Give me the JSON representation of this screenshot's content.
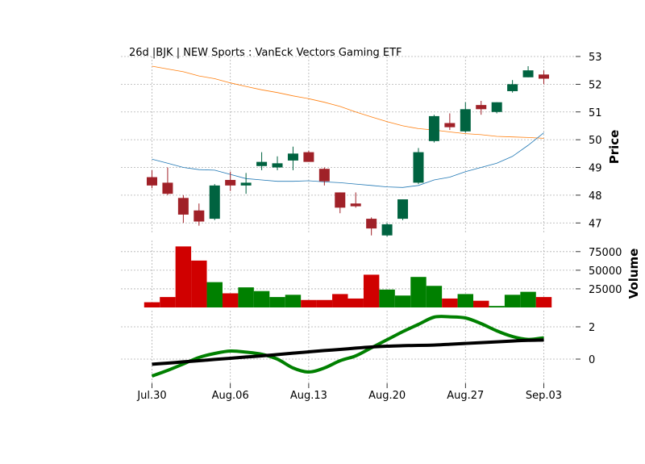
{
  "chart_data": {
    "type": "candlestick",
    "title": "26d |BJK | NEW Sports : VanEck Vectors Gaming ETF",
    "x_ticks": [
      "Jul.30",
      "Aug.06",
      "Aug.13",
      "Aug.20",
      "Aug.27",
      "Sep.03"
    ],
    "x_tick_index": [
      0,
      5,
      10,
      15,
      20,
      25
    ],
    "price_panel": {
      "ylabel": "Price",
      "ylim": [
        46.6,
        53.0
      ],
      "y_ticks": [
        47,
        48,
        49,
        50,
        51,
        52,
        53
      ],
      "candles": [
        {
          "o": 48.65,
          "h": 48.9,
          "l": 48.25,
          "c": 48.35
        },
        {
          "o": 48.45,
          "h": 49.0,
          "l": 48.0,
          "c": 48.05
        },
        {
          "o": 47.9,
          "h": 48.0,
          "l": 47.0,
          "c": 47.3
        },
        {
          "o": 47.45,
          "h": 47.7,
          "l": 46.9,
          "c": 47.05
        },
        {
          "o": 47.15,
          "h": 48.4,
          "l": 47.1,
          "c": 48.35
        },
        {
          "o": 48.55,
          "h": 48.85,
          "l": 48.15,
          "c": 48.35
        },
        {
          "o": 48.35,
          "h": 48.8,
          "l": 48.05,
          "c": 48.45
        },
        {
          "o": 49.05,
          "h": 49.55,
          "l": 48.9,
          "c": 49.2
        },
        {
          "o": 49.0,
          "h": 49.4,
          "l": 48.9,
          "c": 49.15
        },
        {
          "o": 49.25,
          "h": 49.75,
          "l": 48.9,
          "c": 49.5
        },
        {
          "o": 49.55,
          "h": 49.6,
          "l": 49.2,
          "c": 49.2
        },
        {
          "o": 48.95,
          "h": 49.0,
          "l": 48.35,
          "c": 48.5
        },
        {
          "o": 48.1,
          "h": 48.1,
          "l": 47.35,
          "c": 47.55
        },
        {
          "o": 47.7,
          "h": 48.1,
          "l": 47.55,
          "c": 47.6
        },
        {
          "o": 47.15,
          "h": 47.2,
          "l": 46.55,
          "c": 46.8
        },
        {
          "o": 46.55,
          "h": 47.0,
          "l": 46.5,
          "c": 46.95
        },
        {
          "o": 47.15,
          "h": 47.85,
          "l": 47.1,
          "c": 47.85
        },
        {
          "o": 48.45,
          "h": 49.7,
          "l": 48.4,
          "c": 49.55
        },
        {
          "o": 49.95,
          "h": 50.9,
          "l": 49.9,
          "c": 50.85
        },
        {
          "o": 50.6,
          "h": 50.95,
          "l": 50.35,
          "c": 50.45
        },
        {
          "o": 50.3,
          "h": 51.35,
          "l": 50.25,
          "c": 51.1
        },
        {
          "o": 51.25,
          "h": 51.4,
          "l": 50.9,
          "c": 51.1
        },
        {
          "o": 51.0,
          "h": 51.35,
          "l": 50.95,
          "c": 51.35
        },
        {
          "o": 51.75,
          "h": 52.15,
          "l": 51.7,
          "c": 52.0
        },
        {
          "o": 52.25,
          "h": 52.65,
          "l": 52.25,
          "c": 52.5
        },
        {
          "o": 52.35,
          "h": 52.5,
          "l": 52.0,
          "c": 52.2
        }
      ],
      "ma_short": [
        49.3,
        49.15,
        49.0,
        48.92,
        48.9,
        48.75,
        48.6,
        48.55,
        48.5,
        48.5,
        48.52,
        48.48,
        48.45,
        48.4,
        48.35,
        48.3,
        48.28,
        48.35,
        48.55,
        48.65,
        48.85,
        49.0,
        49.15,
        49.4,
        49.8,
        50.25
      ],
      "ma_long": [
        52.65,
        52.55,
        52.45,
        52.3,
        52.2,
        52.05,
        51.92,
        51.8,
        51.7,
        51.58,
        51.48,
        51.35,
        51.2,
        51.0,
        50.82,
        50.65,
        50.5,
        50.4,
        50.35,
        50.28,
        50.22,
        50.18,
        50.12,
        50.1,
        50.08,
        50.05
      ],
      "ma_short_color": "#1f77b4",
      "ma_long_color": "#ff7f0e"
    },
    "volume_panel": {
      "ylabel": "Volume",
      "ylim": [
        0,
        90000
      ],
      "y_ticks": [
        25000,
        50000,
        75000
      ],
      "y_tick_labels": [
        "25000",
        "50000",
        "75000"
      ],
      "values": [
        7000,
        14000,
        82000,
        63000,
        34000,
        19000,
        27000,
        22000,
        14000,
        17000,
        10000,
        10000,
        18000,
        12000,
        44000,
        24000,
        16000,
        41000,
        29000,
        12000,
        18000,
        9000,
        2000,
        17000,
        21000,
        14000
      ],
      "up_color": "#008000",
      "down_color": "#d00000"
    },
    "indicator_panel": {
      "ylim": [
        -1.5,
        3.0
      ],
      "y_ticks": [
        0,
        2
      ],
      "y_tick_labels": [
        "0",
        "2"
      ],
      "green_line": [
        -1.05,
        -0.7,
        -0.3,
        0.1,
        0.35,
        0.5,
        0.43,
        0.3,
        0.0,
        -0.55,
        -0.8,
        -0.55,
        -0.1,
        0.2,
        0.7,
        1.2,
        1.7,
        2.15,
        2.6,
        2.62,
        2.55,
        2.2,
        1.75,
        1.4,
        1.22,
        1.32
      ],
      "black_line": [
        -0.32,
        -0.25,
        -0.17,
        -0.1,
        -0.02,
        0.05,
        0.13,
        0.2,
        0.28,
        0.37,
        0.45,
        0.53,
        0.6,
        0.68,
        0.75,
        0.8,
        0.83,
        0.85,
        0.87,
        0.92,
        0.97,
        1.02,
        1.07,
        1.12,
        1.16,
        1.18
      ],
      "green_color": "#008000",
      "black_color": "#000000"
    },
    "candle_up_color": "#006340",
    "candle_down_color": "#a02128",
    "grid": true
  }
}
